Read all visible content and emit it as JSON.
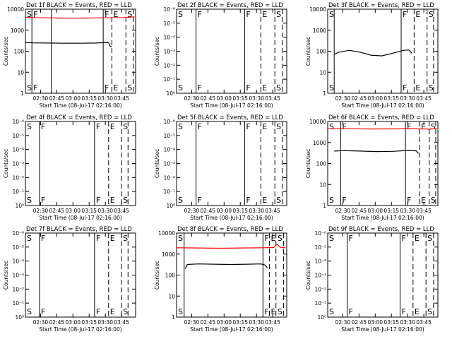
{
  "figure": {
    "xlabel": "Start Time (08-Jul-17 02:16:00)",
    "ylabel": "Counts/sec",
    "x_ticks": [
      "02:30",
      "02:45",
      "03:00",
      "03:15",
      "03:30",
      "03:45"
    ],
    "x_tick_minutes": [
      14,
      29,
      44,
      59,
      74,
      89
    ],
    "x_range_minutes": [
      0,
      102
    ],
    "event_color": "#000000",
    "lld_color": "#ff0000"
  },
  "chart_data": [
    {
      "type": "line",
      "title": "Det 1f BLACK = Events, RED = LLD",
      "yscale": "log",
      "ylim": [
        1,
        10000
      ],
      "y_ticks": [
        "1",
        "10",
        "100",
        "1000",
        "10000"
      ],
      "series": [
        {
          "name": "Events",
          "color": "#000000",
          "x": [
            0,
            7,
            20,
            35,
            50,
            65,
            77,
            78,
            80
          ],
          "y": [
            260,
            250,
            245,
            240,
            240,
            245,
            260,
            180,
            160
          ]
        },
        {
          "name": "LLD",
          "color": "#ff0000",
          "x": [
            0,
            15,
            30,
            45,
            60,
            75,
            90,
            101
          ],
          "y": [
            4100,
            3900,
            3800,
            3700,
            3800,
            3900,
            4000,
            4300
          ]
        }
      ],
      "markers": [
        {
          "t": 0,
          "label": "S",
          "style": "dashed"
        },
        {
          "t": 6,
          "label": "F",
          "style": "solid"
        },
        {
          "t": 24,
          "label": "",
          "style": "solid"
        },
        {
          "t": 72,
          "label": "F",
          "style": "solid"
        },
        {
          "t": 80,
          "label": "E",
          "style": "dashed"
        },
        {
          "t": 93,
          "label": "S",
          "style": "dashed"
        },
        {
          "t": 100,
          "label": "",
          "style": "dashed"
        }
      ]
    },
    {
      "type": "line",
      "title": "Det 2f BLACK = Events, RED = LLD",
      "yscale": "log",
      "ylim": [
        1,
        1e-06
      ],
      "y_ticks": [
        "10⁰",
        "10⁻¹",
        "10⁻²",
        "10⁻³",
        "10⁻⁴",
        "10⁻⁵",
        "10⁻⁶"
      ],
      "series": [],
      "markers": [
        {
          "t": 0,
          "label": "S",
          "style": "dashed"
        },
        {
          "t": 18,
          "label": "F",
          "style": "solid"
        },
        {
          "t": 63,
          "label": "F",
          "style": "solid"
        },
        {
          "t": 78,
          "label": "E",
          "style": "dashed"
        },
        {
          "t": 91,
          "label": "S",
          "style": "dashed"
        },
        {
          "t": 98,
          "label": "",
          "style": "dashed"
        }
      ]
    },
    {
      "type": "line",
      "title": "Det 3f BLACK = Events, RED = LLD",
      "yscale": "log",
      "ylim": [
        1,
        10000
      ],
      "y_ticks": [
        "1",
        "10",
        "100",
        "1000",
        "10000"
      ],
      "series": [
        {
          "name": "Events",
          "color": "#000000",
          "x": [
            6,
            10,
            20,
            30,
            40,
            50,
            60,
            70,
            75,
            78
          ],
          "y": [
            70,
            90,
            110,
            90,
            65,
            60,
            80,
            110,
            115,
            80
          ]
        }
      ],
      "markers": [
        {
          "t": 0,
          "label": "S",
          "style": "dashed"
        },
        {
          "t": 6,
          "label": "",
          "style": "solid"
        },
        {
          "t": 68,
          "label": "F",
          "style": "solid"
        },
        {
          "t": 80,
          "label": "E",
          "style": "dashed"
        },
        {
          "t": 92,
          "label": "S",
          "style": "dashed"
        },
        {
          "t": 98,
          "label": "",
          "style": "dashed"
        }
      ]
    },
    {
      "type": "line",
      "title": "Det 4f BLACK = Events, RED = LLD",
      "yscale": "log",
      "ylim": [
        1,
        1e-06
      ],
      "y_ticks": [
        "10⁰",
        "10⁻¹",
        "10⁻²",
        "10⁻³",
        "10⁻⁴",
        "10⁻⁵",
        "10⁻⁶"
      ],
      "series": [],
      "markers": [
        {
          "t": 0,
          "label": "S",
          "style": "dashed"
        },
        {
          "t": 13,
          "label": "F",
          "style": "solid"
        },
        {
          "t": 64,
          "label": "F",
          "style": "solid"
        },
        {
          "t": 77,
          "label": "E",
          "style": "dashed"
        },
        {
          "t": 89,
          "label": "S",
          "style": "dashed"
        },
        {
          "t": 95,
          "label": "",
          "style": "dashed"
        }
      ]
    },
    {
      "type": "line",
      "title": "Det 5f BLACK = Events, RED = LLD",
      "yscale": "log",
      "ylim": [
        1,
        1e-06
      ],
      "y_ticks": [
        "10⁰",
        "10⁻¹",
        "10⁻²",
        "10⁻³",
        "10⁻⁴",
        "10⁻⁵",
        "10⁻⁶"
      ],
      "series": [],
      "markers": [
        {
          "t": 0,
          "label": "S",
          "style": "dashed"
        },
        {
          "t": 18,
          "label": "F",
          "style": "solid"
        },
        {
          "t": 63,
          "label": "F",
          "style": "solid"
        },
        {
          "t": 78,
          "label": "E",
          "style": "dashed"
        },
        {
          "t": 91,
          "label": "S",
          "style": "dashed"
        },
        {
          "t": 98,
          "label": "",
          "style": "dashed"
        }
      ]
    },
    {
      "type": "line",
      "title": "Det 6f BLACK = Events, RED = LLD",
      "yscale": "log",
      "ylim": [
        1,
        10000
      ],
      "y_ticks": [
        "1",
        "10",
        "100",
        "1000",
        "10000"
      ],
      "series": [
        {
          "name": "Events",
          "color": "#000000",
          "x": [
            6,
            15,
            30,
            45,
            60,
            75,
            82,
            84
          ],
          "y": [
            390,
            410,
            390,
            370,
            380,
            420,
            400,
            300
          ]
        },
        {
          "name": "LLD",
          "color": "#ff0000",
          "x": [
            0,
            20,
            40,
            60,
            80,
            95,
            101
          ],
          "y": [
            4500,
            4500,
            4400,
            4450,
            4500,
            4300,
            4700
          ]
        }
      ],
      "markers": [
        {
          "t": 0,
          "label": "S",
          "style": "dashed"
        },
        {
          "t": 12,
          "label": "F",
          "style": "solid"
        },
        {
          "t": 72,
          "label": "F",
          "style": "solid"
        },
        {
          "t": 85,
          "label": "E",
          "style": "dashed"
        },
        {
          "t": 94,
          "label": "S",
          "style": "dashed"
        },
        {
          "t": 100,
          "label": "",
          "style": "dashed"
        }
      ]
    },
    {
      "type": "line",
      "title": "Det 7f BLACK = Events, RED = LLD",
      "yscale": "log",
      "ylim": [
        1,
        1e-06
      ],
      "y_ticks": [
        "10⁰",
        "10⁻¹",
        "10⁻²",
        "10⁻³",
        "10⁻⁴",
        "10⁻⁵",
        "10⁻⁶"
      ],
      "series": [],
      "markers": [
        {
          "t": 0,
          "label": "S",
          "style": "dashed"
        },
        {
          "t": 13,
          "label": "F",
          "style": "solid"
        },
        {
          "t": 64,
          "label": "F",
          "style": "solid"
        },
        {
          "t": 77,
          "label": "E",
          "style": "dashed"
        },
        {
          "t": 89,
          "label": "S",
          "style": "dashed"
        },
        {
          "t": 95,
          "label": "",
          "style": "dashed"
        }
      ]
    },
    {
      "type": "line",
      "title": "Det 8f BLACK = Events, RED = LLD",
      "yscale": "log",
      "ylim": [
        1,
        10000
      ],
      "y_ticks": [
        "1",
        "10",
        "100",
        "1000",
        "10000"
      ],
      "series": [
        {
          "name": "Events",
          "color": "#000000",
          "x": [
            8,
            10,
            20,
            35,
            50,
            65,
            78,
            82,
            84
          ],
          "y": [
            200,
            320,
            340,
            330,
            320,
            330,
            340,
            300,
            220
          ]
        },
        {
          "name": "LLD",
          "color": "#ff0000",
          "x": [
            0,
            20,
            40,
            60,
            80,
            90,
            93,
            96,
            101
          ],
          "y": [
            2000,
            1950,
            1900,
            1950,
            2000,
            2050,
            3000,
            2100,
            2000
          ]
        }
      ],
      "markers": [
        {
          "t": 0,
          "label": "S",
          "style": "dashed"
        },
        {
          "t": 7,
          "label": "",
          "style": "solid"
        },
        {
          "t": 80,
          "label": "F",
          "style": "solid"
        },
        {
          "t": 86,
          "label": "E",
          "style": "dashed"
        },
        {
          "t": 92,
          "label": "S",
          "style": "dashed"
        },
        {
          "t": 99,
          "label": "",
          "style": "dashed"
        }
      ]
    },
    {
      "type": "line",
      "title": "Det 9f BLACK = Events, RED = LLD",
      "yscale": "log",
      "ylim": [
        1,
        1e-06
      ],
      "y_ticks": [
        "10⁰",
        "10⁻¹",
        "10⁻²",
        "10⁻³",
        "10⁻⁴",
        "10⁻⁵",
        "10⁻⁶"
      ],
      "series": [],
      "markers": [
        {
          "t": 0,
          "label": "S",
          "style": "dashed"
        },
        {
          "t": 18,
          "label": "F",
          "style": "solid"
        },
        {
          "t": 67,
          "label": "F",
          "style": "solid"
        },
        {
          "t": 79,
          "label": "E",
          "style": "dashed"
        },
        {
          "t": 91,
          "label": "S",
          "style": "dashed"
        },
        {
          "t": 98,
          "label": "",
          "style": "dashed"
        }
      ]
    }
  ]
}
